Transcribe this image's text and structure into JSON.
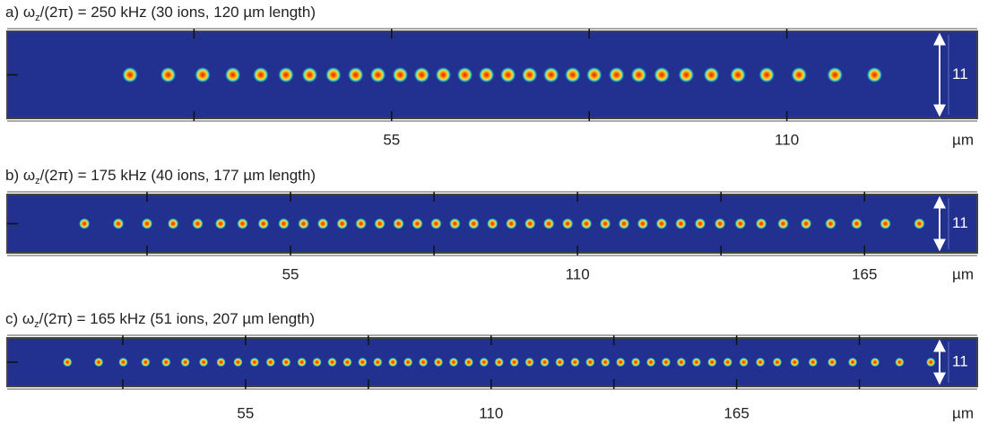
{
  "chart_data": [
    {
      "type": "ions",
      "title": [
        "a) ω",
        "z",
        "/(2π) = 250 kHz (30 ions, 120 µm length)"
      ],
      "x": [
        18.6,
        23.9,
        28.7,
        32.9,
        36.8,
        40.3,
        43.6,
        46.9,
        50.0,
        53.1,
        56.2,
        59.2,
        62.2,
        65.2,
        68.2,
        71.2,
        74.2,
        77.2,
        80.2,
        83.2,
        86.3,
        89.4,
        92.6,
        96.0,
        99.5,
        103.2,
        107.2,
        111.7,
        116.7,
        122.2
      ],
      "xlim": [
        1.5,
        136.5
      ],
      "xticks": [
        55,
        110
      ],
      "minor_xticks": [
        27.5,
        82.5
      ],
      "x_unit": "µm",
      "scale_label": "11"
    },
    {
      "type": "ions",
      "title": [
        "b) ω",
        "z",
        "/(2π) = 175 kHz (40 ions, 177 µm length)"
      ],
      "x": [
        15.5,
        22.0,
        27.5,
        32.5,
        37.2,
        41.6,
        45.8,
        49.8,
        53.7,
        57.5,
        61.2,
        64.9,
        68.5,
        72.1,
        75.7,
        79.3,
        82.9,
        86.5,
        90.1,
        93.7,
        97.3,
        100.9,
        104.5,
        108.1,
        111.7,
        115.3,
        118.9,
        122.5,
        126.1,
        129.8,
        133.5,
        137.3,
        141.2,
        145.2,
        149.4,
        153.8,
        158.5,
        163.5,
        169.0,
        175.5
      ],
      "xlim": [
        0.7,
        186.6
      ],
      "xticks": [
        55,
        110,
        165
      ],
      "minor_xticks": [
        27.5,
        82.5,
        137.5
      ],
      "x_unit": "µm",
      "scale_label": "11"
    },
    {
      "type": "ions",
      "title": [
        "c) ω",
        "z",
        "/(2π) = 165 kHz (51 ions, 207 µm length)"
      ],
      "x": [
        15.1,
        22.1,
        27.6,
        32.6,
        37.2,
        41.5,
        45.6,
        49.5,
        53.3,
        57.0,
        60.6,
        64.1,
        67.6,
        71.0,
        74.4,
        77.8,
        81.2,
        84.6,
        88.0,
        91.4,
        94.8,
        98.2,
        101.6,
        105.0,
        108.4,
        111.8,
        115.2,
        118.6,
        122.0,
        125.4,
        128.8,
        132.2,
        135.6,
        139.0,
        142.4,
        145.8,
        149.2,
        152.6,
        156.0,
        159.5,
        163.0,
        166.6,
        170.3,
        174.1,
        178.0,
        182.1,
        186.4,
        191.0,
        196.0,
        201.5,
        208.5
      ],
      "xlim": [
        1.6,
        218.9
      ],
      "xticks": [
        55,
        110,
        165
      ],
      "minor_xticks": [
        27.5,
        82.5,
        137.5,
        192.5
      ],
      "x_unit": "µm",
      "scale_label": "11"
    }
  ]
}
